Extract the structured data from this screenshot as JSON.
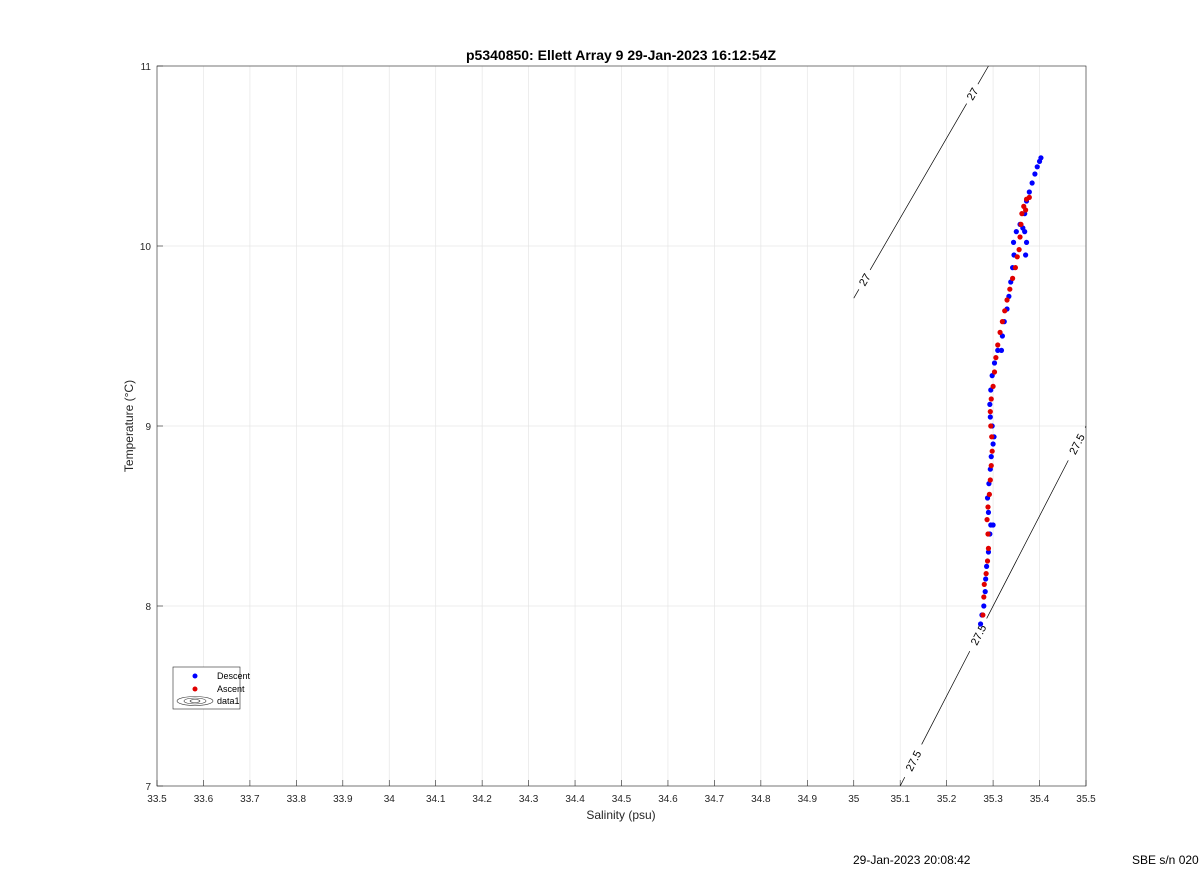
{
  "chart_data": {
    "type": "scatter",
    "title": "p5340850: Ellett Array 9 29-Jan-2023 16:12:54Z",
    "xlabel": "Salinity (psu)",
    "ylabel": "Temperature (°C)",
    "xlim": [
      33.5,
      35.5
    ],
    "ylim": [
      7,
      11
    ],
    "xticks": [
      "33.5",
      "33.6",
      "33.7",
      "33.8",
      "33.9",
      "34",
      "34.1",
      "34.2",
      "34.3",
      "34.4",
      "34.5",
      "34.6",
      "34.7",
      "34.8",
      "34.9",
      "35",
      "35.1",
      "35.2",
      "35.3",
      "35.4",
      "35.5"
    ],
    "yticks": [
      "7",
      "8",
      "9",
      "10",
      "11"
    ],
    "grid": true,
    "legend_position": "lower-left",
    "legend": [
      "Descent",
      "Ascent",
      "data1"
    ],
    "series": [
      {
        "name": "Descent",
        "color": "#0000ff",
        "points": [
          [
            35.273,
            7.9
          ],
          [
            35.276,
            7.95
          ],
          [
            35.28,
            8.0
          ],
          [
            35.283,
            8.08
          ],
          [
            35.284,
            8.15
          ],
          [
            35.286,
            8.22
          ],
          [
            35.29,
            8.3
          ],
          [
            35.293,
            8.4
          ],
          [
            35.3,
            8.45
          ],
          [
            35.295,
            8.45
          ],
          [
            35.29,
            8.52
          ],
          [
            35.288,
            8.6
          ],
          [
            35.291,
            8.68
          ],
          [
            35.294,
            8.76
          ],
          [
            35.296,
            8.83
          ],
          [
            35.3,
            8.9
          ],
          [
            35.302,
            8.94
          ],
          [
            35.298,
            9.0
          ],
          [
            35.294,
            9.05
          ],
          [
            35.293,
            9.12
          ],
          [
            35.295,
            9.2
          ],
          [
            35.298,
            9.28
          ],
          [
            35.303,
            9.35
          ],
          [
            35.31,
            9.42
          ],
          [
            35.318,
            9.42
          ],
          [
            35.32,
            9.5
          ],
          [
            35.324,
            9.58
          ],
          [
            35.33,
            9.65
          ],
          [
            35.334,
            9.72
          ],
          [
            35.338,
            9.8
          ],
          [
            35.342,
            9.88
          ],
          [
            35.345,
            9.95
          ],
          [
            35.344,
            10.02
          ],
          [
            35.35,
            10.08
          ],
          [
            35.358,
            10.12
          ],
          [
            35.368,
            10.08
          ],
          [
            35.372,
            10.02
          ],
          [
            35.37,
            9.95
          ],
          [
            35.364,
            10.1
          ],
          [
            35.368,
            10.18
          ],
          [
            35.372,
            10.25
          ],
          [
            35.378,
            10.3
          ],
          [
            35.384,
            10.35
          ],
          [
            35.39,
            10.4
          ],
          [
            35.395,
            10.44
          ],
          [
            35.4,
            10.47
          ],
          [
            35.403,
            10.49
          ]
        ]
      },
      {
        "name": "Ascent",
        "color": "#e00000",
        "points": [
          [
            35.278,
            7.95
          ],
          [
            35.28,
            8.05
          ],
          [
            35.281,
            8.12
          ],
          [
            35.285,
            8.18
          ],
          [
            35.288,
            8.25
          ],
          [
            35.29,
            8.32
          ],
          [
            35.289,
            8.4
          ],
          [
            35.287,
            8.48
          ],
          [
            35.289,
            8.55
          ],
          [
            35.292,
            8.62
          ],
          [
            35.294,
            8.7
          ],
          [
            35.296,
            8.78
          ],
          [
            35.298,
            8.86
          ],
          [
            35.297,
            8.94
          ],
          [
            35.295,
            9.0
          ],
          [
            35.294,
            9.08
          ],
          [
            35.296,
            9.15
          ],
          [
            35.3,
            9.22
          ],
          [
            35.303,
            9.3
          ],
          [
            35.306,
            9.38
          ],
          [
            35.31,
            9.45
          ],
          [
            35.315,
            9.52
          ],
          [
            35.32,
            9.58
          ],
          [
            35.325,
            9.64
          ],
          [
            35.33,
            9.7
          ],
          [
            35.336,
            9.76
          ],
          [
            35.342,
            9.82
          ],
          [
            35.348,
            9.88
          ],
          [
            35.352,
            9.94
          ],
          [
            35.356,
            9.98
          ],
          [
            35.358,
            10.05
          ],
          [
            35.36,
            10.12
          ],
          [
            35.362,
            10.18
          ],
          [
            35.366,
            10.22
          ],
          [
            35.372,
            10.26
          ],
          [
            35.378,
            10.27
          ],
          [
            35.37,
            10.2
          ]
        ]
      }
    ],
    "contours": [
      {
        "label": "27",
        "label_positions": [
          "27",
          "27"
        ],
        "x": [
          35.0,
          35.29
        ],
        "y": [
          9.71,
          11.0
        ]
      },
      {
        "label": "27.5",
        "label_positions": [
          "27.5",
          "27.5",
          "27.5"
        ],
        "x": [
          35.1,
          35.5
        ],
        "y": [
          7.0,
          9.0
        ]
      }
    ]
  },
  "footer": {
    "timestamp": "29-Jan-2023 20:08:42",
    "serial": "SBE s/n 020"
  }
}
